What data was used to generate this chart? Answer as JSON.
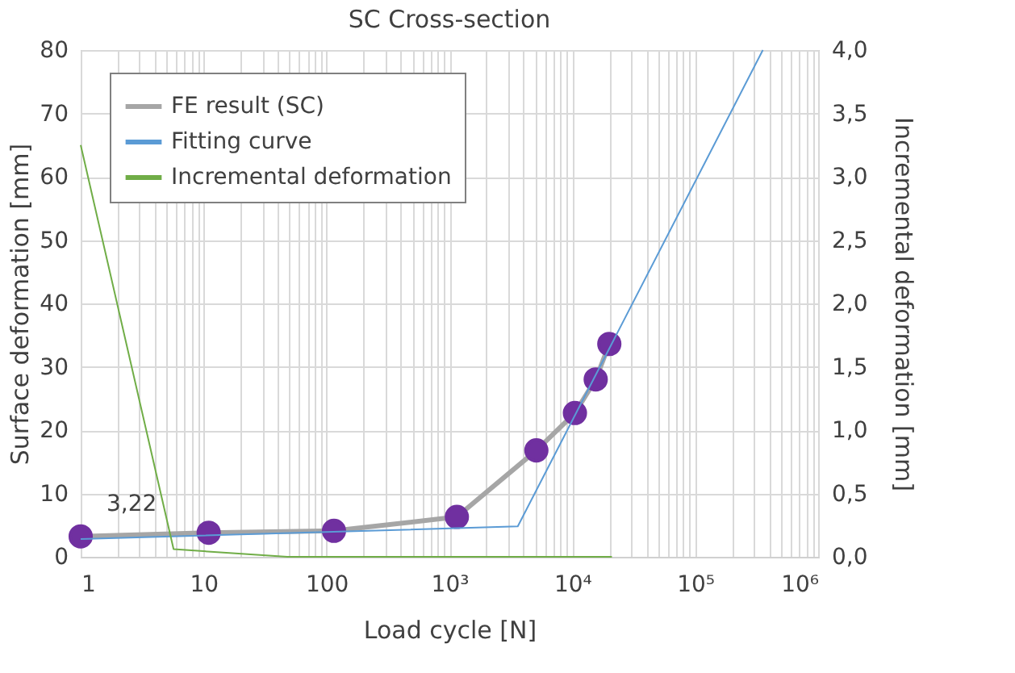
{
  "chart_data": {
    "type": "line",
    "title": "SC Cross-section",
    "xlabel": "Load cycle [N]",
    "ylabel": "Surface deformation [mm]",
    "y2label": "Incremental deformation [mm]",
    "log": "x",
    "grid": true,
    "legend": "top left",
    "xlim": [
      1,
      1000000
    ],
    "xticks": [
      {
        "value": 1,
        "label": "1"
      },
      {
        "value": 2,
        "label": null
      },
      {
        "value": 3,
        "label": null
      },
      {
        "value": 4,
        "label": null
      },
      {
        "value": 5,
        "label": null
      },
      {
        "value": 6,
        "label": null
      },
      {
        "value": 7,
        "label": null
      },
      {
        "value": 8,
        "label": null
      },
      {
        "value": 9,
        "label": null
      },
      {
        "value": 10,
        "label": "10"
      },
      {
        "value": 20,
        "label": null
      },
      {
        "value": 30,
        "label": null
      },
      {
        "value": 40,
        "label": null
      },
      {
        "value": 50,
        "label": null
      },
      {
        "value": 60,
        "label": null
      },
      {
        "value": 70,
        "label": null
      },
      {
        "value": 80,
        "label": null
      },
      {
        "value": 90,
        "label": null
      },
      {
        "value": 100,
        "label": "100"
      },
      {
        "value": 200,
        "label": null
      },
      {
        "value": 300,
        "label": null
      },
      {
        "value": 400,
        "label": null
      },
      {
        "value": 500,
        "label": null
      },
      {
        "value": 600,
        "label": null
      },
      {
        "value": 700,
        "label": null
      },
      {
        "value": 800,
        "label": null
      },
      {
        "value": 900,
        "label": null
      },
      {
        "value": 1000,
        "label": "10³"
      },
      {
        "value": 2000,
        "label": null
      },
      {
        "value": 3000,
        "label": null
      },
      {
        "value": 4000,
        "label": null
      },
      {
        "value": 5000,
        "label": null
      },
      {
        "value": 6000,
        "label": null
      },
      {
        "value": 7000,
        "label": null
      },
      {
        "value": 8000,
        "label": null
      },
      {
        "value": 9000,
        "label": null
      },
      {
        "value": 10000,
        "label": "10⁴"
      },
      {
        "value": 20000,
        "label": null
      },
      {
        "value": 30000,
        "label": null
      },
      {
        "value": 40000,
        "label": null
      },
      {
        "value": 50000,
        "label": null
      },
      {
        "value": 60000,
        "label": null
      },
      {
        "value": 70000,
        "label": null
      },
      {
        "value": 80000,
        "label": null
      },
      {
        "value": 90000,
        "label": null
      },
      {
        "value": 100000,
        "label": "10⁵"
      },
      {
        "value": 200000,
        "label": null
      },
      {
        "value": 300000,
        "label": null
      },
      {
        "value": 400000,
        "label": null
      },
      {
        "value": 500000,
        "label": null
      },
      {
        "value": 600000,
        "label": null
      },
      {
        "value": 700000,
        "label": null
      },
      {
        "value": 800000,
        "label": null
      },
      {
        "value": 900000,
        "label": null
      },
      {
        "value": 1000000,
        "label": "10⁶"
      }
    ],
    "ylim": [
      0,
      80
    ],
    "yticks": [
      0,
      10,
      20,
      30,
      40,
      50,
      60,
      70,
      80
    ],
    "y2lim": [
      0,
      4
    ],
    "y2ticks": [
      {
        "value": 0,
        "label": "0,0"
      },
      {
        "value": 0.5,
        "label": "0,5"
      },
      {
        "value": 1,
        "label": "1,0"
      },
      {
        "value": 1.5,
        "label": "1,5"
      },
      {
        "value": 2,
        "label": "2,0"
      },
      {
        "value": 2.5,
        "label": "2,5"
      },
      {
        "value": 3,
        "label": "3,0"
      },
      {
        "value": 3.5,
        "label": "3,5"
      },
      {
        "value": 4,
        "label": "4,0"
      }
    ],
    "series": [
      {
        "name": "FE result (SC)",
        "color": "#a6a6a6",
        "colors": [
          "#7030a0",
          "#7030a0",
          "#7030a0",
          "#7030a0",
          "#7030a0",
          "#7030a0",
          "#7030a0",
          "#7030a0"
        ],
        "marker": "circle",
        "x": [
          1,
          11,
          115,
          1150,
          5100,
          10500,
          15500,
          20000
        ],
        "values": [
          3.22,
          3.8,
          4.1,
          6.3,
          16.8,
          22.7,
          28,
          33.6
        ]
      },
      {
        "name": "Fitting curve",
        "color": "#5b9bd5",
        "marker": "none",
        "x": [
          1,
          3600,
          355000
        ],
        "values": [
          2.8,
          4.8,
          80
        ]
      },
      {
        "name": "Incremental deformation",
        "color": "#70ad47",
        "marker": "none",
        "axis": "y2",
        "x": [
          1,
          5.7,
          48,
          21000
        ],
        "values": [
          3.25,
          0.06,
          0.0,
          0.0
        ]
      }
    ],
    "annotations": [
      {
        "text": "3,22",
        "x": 1,
        "y": 3.22
      }
    ]
  }
}
